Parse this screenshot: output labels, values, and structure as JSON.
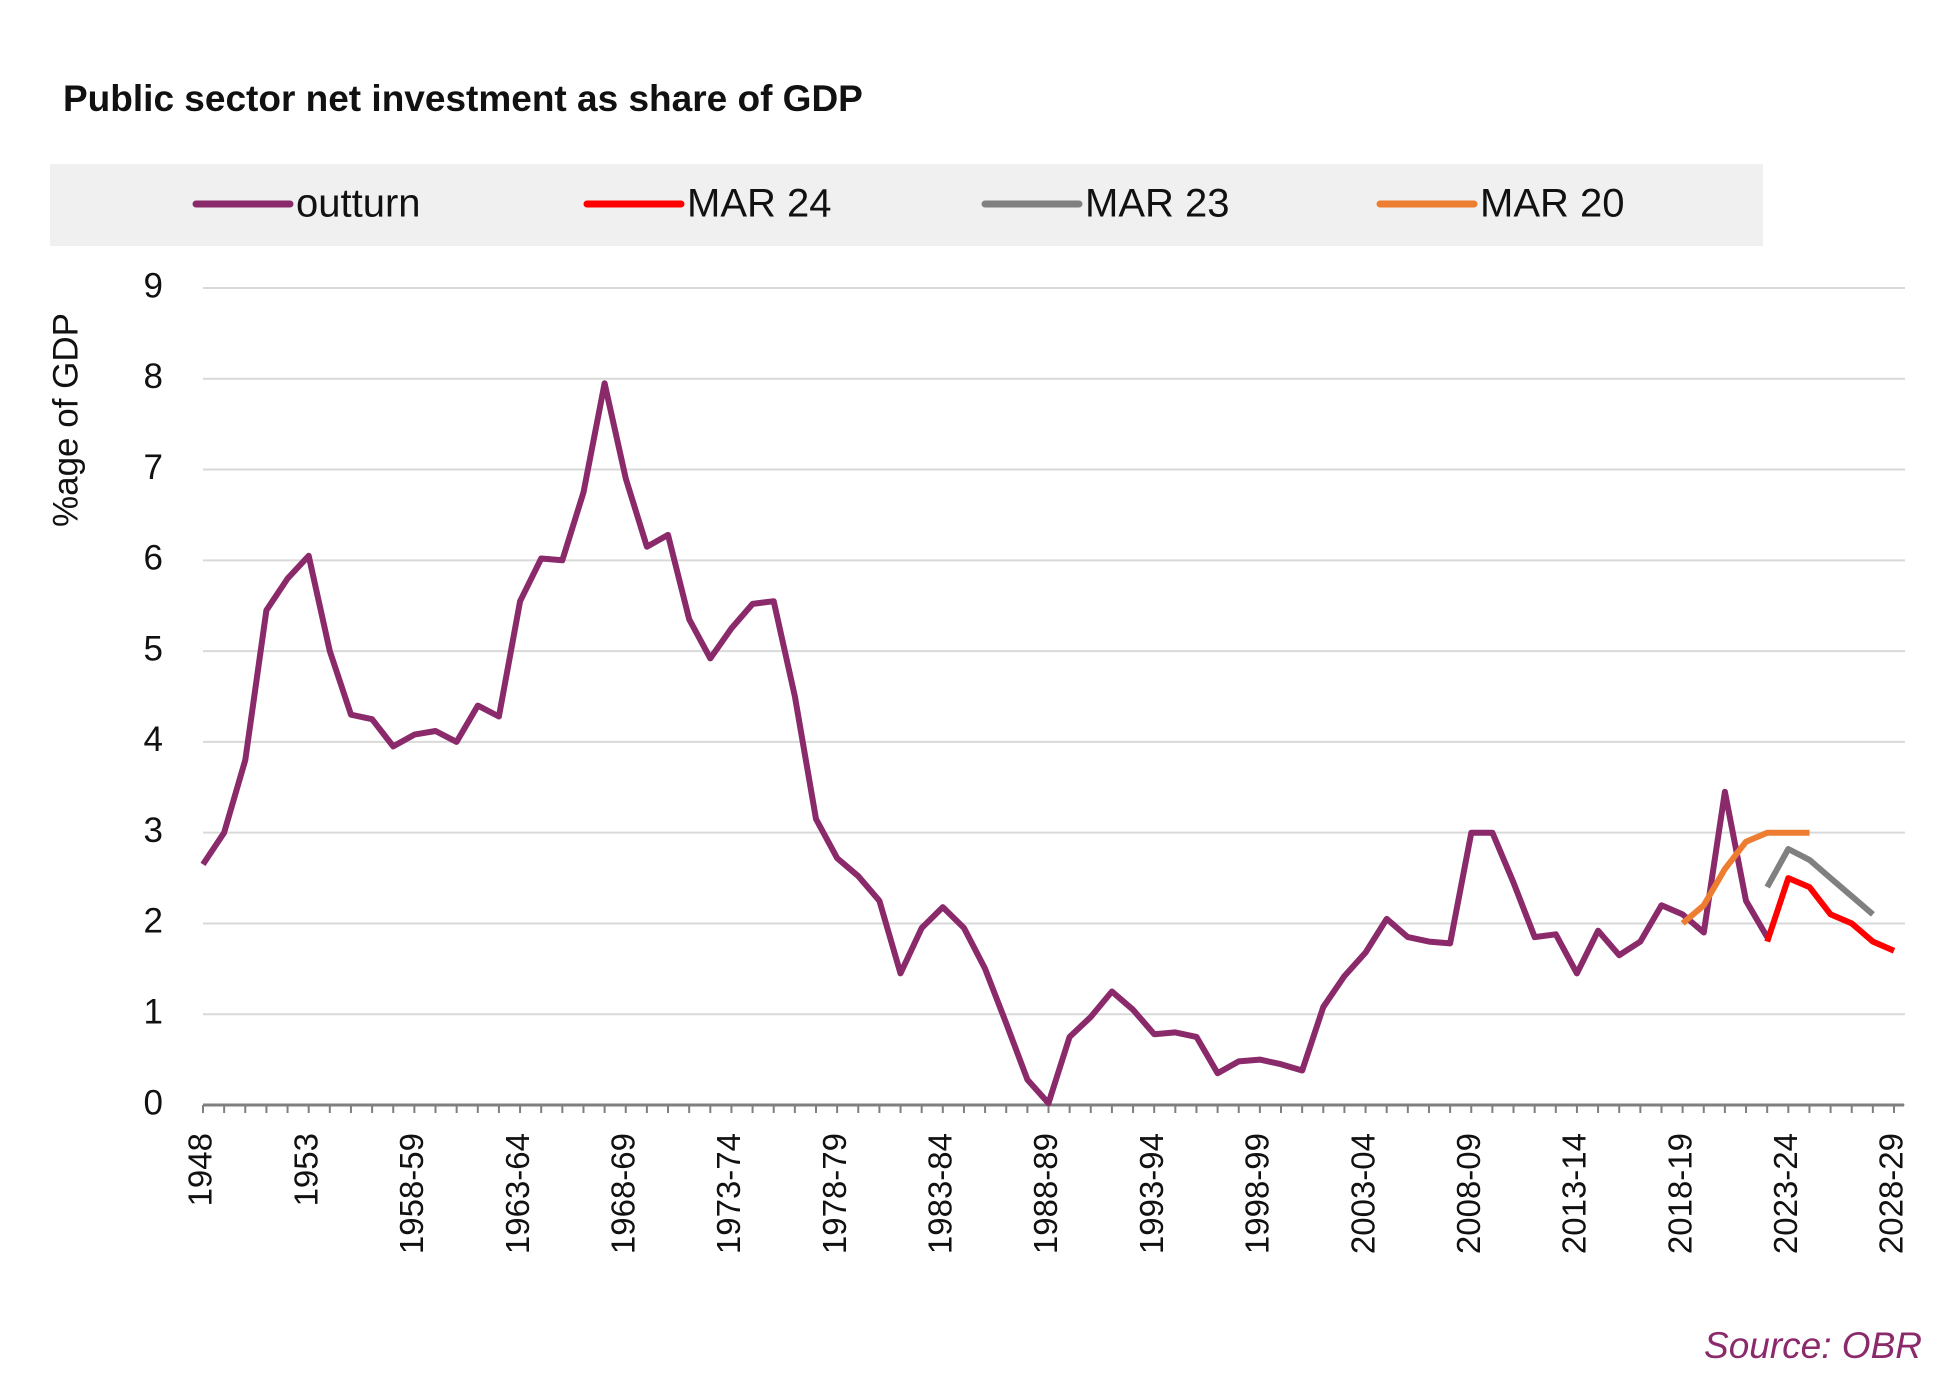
{
  "chart_data": {
    "type": "line",
    "title": "Public sector net investment as share of GDP",
    "y_axis_label": "%age of GDP",
    "annotation": "Source: OBR",
    "categories": [
      "1948",
      null,
      null,
      null,
      null,
      "1953",
      null,
      null,
      null,
      null,
      "1958-59",
      null,
      null,
      null,
      null,
      "1963-64",
      null,
      null,
      null,
      null,
      "1968-69",
      null,
      null,
      null,
      null,
      "1973-74",
      null,
      null,
      null,
      null,
      "1978-79",
      null,
      null,
      null,
      null,
      "1983-84",
      null,
      null,
      null,
      null,
      "1988-89",
      null,
      null,
      null,
      null,
      "1993-94",
      null,
      null,
      null,
      null,
      "1998-99",
      null,
      null,
      null,
      null,
      "2003-04",
      null,
      null,
      null,
      null,
      "2008-09",
      null,
      null,
      null,
      null,
      "2013-14",
      null,
      null,
      null,
      null,
      "2018-19",
      null,
      null,
      null,
      null,
      "2023-24",
      null,
      null,
      null,
      null,
      "2028-29"
    ],
    "series": [
      {
        "name": "outturn",
        "color": "#8b2a6b",
        "values": [
          2.65,
          3.0,
          3.8,
          5.45,
          5.8,
          6.05,
          5.0,
          4.3,
          4.25,
          3.95,
          4.08,
          4.12,
          4.0,
          4.4,
          4.28,
          5.55,
          6.02,
          6.0,
          6.75,
          7.95,
          6.9,
          6.15,
          6.28,
          5.35,
          4.92,
          5.25,
          5.52,
          5.55,
          4.5,
          3.15,
          2.72,
          2.52,
          2.25,
          1.45,
          1.95,
          2.18,
          1.95,
          1.5,
          0.9,
          0.28,
          0.02,
          0.75,
          0.97,
          1.25,
          1.05,
          0.78,
          0.8,
          0.75,
          0.35,
          0.48,
          0.5,
          0.45,
          0.38,
          1.08,
          1.42,
          1.68,
          2.05,
          1.85,
          1.8,
          1.78,
          3.0,
          3.0,
          2.45,
          1.85,
          1.88,
          1.45,
          1.92,
          1.65,
          1.8,
          2.2,
          2.1,
          1.9,
          3.45,
          2.25,
          1.85,
          null,
          null,
          null,
          null,
          null,
          null
        ]
      },
      {
        "name": "MAR 24",
        "color": "#ff0000",
        "values": [
          null,
          null,
          null,
          null,
          null,
          null,
          null,
          null,
          null,
          null,
          null,
          null,
          null,
          null,
          null,
          null,
          null,
          null,
          null,
          null,
          null,
          null,
          null,
          null,
          null,
          null,
          null,
          null,
          null,
          null,
          null,
          null,
          null,
          null,
          null,
          null,
          null,
          null,
          null,
          null,
          null,
          null,
          null,
          null,
          null,
          null,
          null,
          null,
          null,
          null,
          null,
          null,
          null,
          null,
          null,
          null,
          null,
          null,
          null,
          null,
          null,
          null,
          null,
          null,
          null,
          null,
          null,
          null,
          null,
          null,
          null,
          null,
          null,
          null,
          1.8,
          2.5,
          2.4,
          2.1,
          2.0,
          1.8,
          1.7
        ]
      },
      {
        "name": "MAR 23",
        "color": "#808080",
        "values": [
          null,
          null,
          null,
          null,
          null,
          null,
          null,
          null,
          null,
          null,
          null,
          null,
          null,
          null,
          null,
          null,
          null,
          null,
          null,
          null,
          null,
          null,
          null,
          null,
          null,
          null,
          null,
          null,
          null,
          null,
          null,
          null,
          null,
          null,
          null,
          null,
          null,
          null,
          null,
          null,
          null,
          null,
          null,
          null,
          null,
          null,
          null,
          null,
          null,
          null,
          null,
          null,
          null,
          null,
          null,
          null,
          null,
          null,
          null,
          null,
          null,
          null,
          null,
          null,
          null,
          null,
          null,
          null,
          null,
          null,
          null,
          null,
          null,
          null,
          2.4,
          2.82,
          2.7,
          2.5,
          2.3,
          2.1,
          null
        ]
      },
      {
        "name": "MAR 20",
        "color": "#ed7d31",
        "values": [
          null,
          null,
          null,
          null,
          null,
          null,
          null,
          null,
          null,
          null,
          null,
          null,
          null,
          null,
          null,
          null,
          null,
          null,
          null,
          null,
          null,
          null,
          null,
          null,
          null,
          null,
          null,
          null,
          null,
          null,
          null,
          null,
          null,
          null,
          null,
          null,
          null,
          null,
          null,
          null,
          null,
          null,
          null,
          null,
          null,
          null,
          null,
          null,
          null,
          null,
          null,
          null,
          null,
          null,
          null,
          null,
          null,
          null,
          null,
          null,
          null,
          null,
          null,
          null,
          null,
          null,
          null,
          null,
          null,
          null,
          2.0,
          2.2,
          2.6,
          2.9,
          3.0,
          3.0,
          3.0,
          null,
          null,
          null,
          null
        ]
      }
    ],
    "ylim": [
      0,
      9
    ],
    "yticks": [
      0,
      1,
      2,
      3,
      4,
      5,
      6,
      7,
      8,
      9
    ],
    "grid": true,
    "legend": "top"
  }
}
